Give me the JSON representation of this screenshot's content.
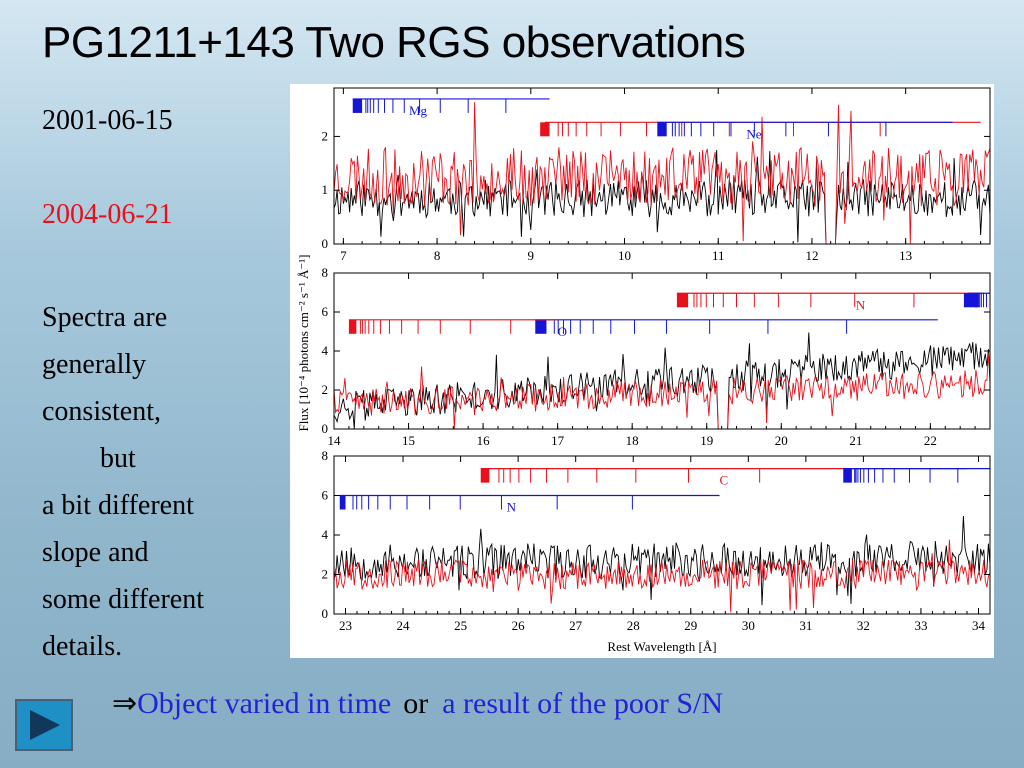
{
  "slide": {
    "title": "PG1211+143 Two RGS observations",
    "date_black": "2001-06-15",
    "date_red": "2004-06-21",
    "description": [
      "Spectra are",
      "generally",
      "consistent,",
      "but",
      "a bit different",
      "slope and",
      "some different",
      "details."
    ],
    "conclusion": {
      "arrow": "⇒",
      "part1": "Object varied in time",
      "or": "or",
      "part2": "a result of the poor S/N"
    },
    "nav_icon": "play-triangle-icon"
  },
  "colors": {
    "black_series": "#000000",
    "red_series": "#e8111b",
    "blue_lines": "#1515d8",
    "conclusion_blue": "#2323d6",
    "nav_button": "#1e90c6"
  },
  "chart_data": [
    {
      "type": "line",
      "xlim": [
        6.9,
        13.9
      ],
      "ylim": [
        0,
        2.9
      ],
      "xticks": [
        7,
        8,
        9,
        10,
        11,
        12,
        13
      ],
      "yticks": [
        0,
        1,
        2
      ],
      "ylabel": "",
      "xlabel": "",
      "series": [
        {
          "color": "black",
          "baseline": 0.85,
          "slope": 0.0,
          "noise": 0.35,
          "seed": 11,
          "dip": [
            12.15,
            12.25
          ]
        },
        {
          "color": "red",
          "baseline": 1.25,
          "slope": 0.0,
          "noise": 0.55,
          "seed": 23,
          "dip": [
            12.15,
            12.25
          ]
        }
      ],
      "line_sets": [
        {
          "label": "Mg",
          "color": "blue",
          "y_frac": 0.07,
          "range": [
            7.1,
            9.2
          ],
          "edge": [
            7.1,
            7.2
          ],
          "label_x": 7.7
        },
        {
          "label": "",
          "color": "red",
          "y_frac": 0.22,
          "range": [
            9.15,
            13.8
          ],
          "edge": [
            9.1,
            9.2
          ],
          "label_x": null
        },
        {
          "label": "Ne",
          "color": "blue",
          "y_frac": 0.22,
          "range": [
            10.35,
            13.5
          ],
          "edge": [
            10.35,
            10.45
          ],
          "label_x": 11.3
        }
      ]
    },
    {
      "type": "line",
      "xlim": [
        14,
        22.8
      ],
      "ylim": [
        0,
        8.0
      ],
      "xticks": [
        14,
        15,
        16,
        17,
        18,
        19,
        20,
        21,
        22
      ],
      "yticks": [
        0,
        2,
        4,
        6,
        8
      ],
      "ylabel": "Flux [10⁻⁴ photons cm⁻² s⁻¹ Å⁻¹]",
      "xlabel": "",
      "series": [
        {
          "color": "black",
          "baseline": 1.1,
          "slope": 0.3,
          "noise": 0.8,
          "seed": 37,
          "dip": [
            19.15,
            19.3
          ]
        },
        {
          "color": "red",
          "baseline": 1.3,
          "slope": 0.12,
          "noise": 0.7,
          "seed": 41,
          "dip": [
            19.15,
            19.3
          ]
        }
      ],
      "line_sets": [
        {
          "label": "N",
          "color": "red",
          "y_frac": 0.13,
          "range": [
            18.6,
            22.7
          ],
          "edge": [
            18.6,
            18.75
          ],
          "label_x": 21.0
        },
        {
          "label": "",
          "color": "blue",
          "y_frac": 0.13,
          "range": [
            22.5,
            22.8
          ],
          "edge": [
            22.45,
            22.6
          ],
          "label_x": null
        },
        {
          "label": "O",
          "color": "blue",
          "y_frac": 0.3,
          "range": [
            16.7,
            22.1
          ],
          "edge": [
            16.7,
            16.85
          ],
          "label_x": 17.0
        },
        {
          "label": "",
          "color": "red",
          "y_frac": 0.3,
          "range": [
            14.2,
            17.0
          ],
          "edge": [
            14.2,
            14.3
          ],
          "label_x": null
        }
      ]
    },
    {
      "type": "line",
      "xlim": [
        22.8,
        34.2
      ],
      "ylim": [
        0,
        8.0
      ],
      "xticks": [
        23,
        24,
        25,
        26,
        27,
        28,
        29,
        30,
        31,
        32,
        33,
        34
      ],
      "yticks": [
        0,
        2,
        4,
        6,
        8
      ],
      "ylabel": "",
      "xlabel": "Rest Wavelength [Å]",
      "series": [
        {
          "color": "black",
          "baseline": 2.6,
          "slope": 0.02,
          "noise": 0.9,
          "seed": 53,
          "dip": null
        },
        {
          "color": "red",
          "baseline": 2.0,
          "slope": 0.0,
          "noise": 0.75,
          "seed": 67,
          "dip": null
        }
      ],
      "line_sets": [
        {
          "label": "C",
          "color": "red",
          "y_frac": 0.08,
          "range": [
            25.35,
            33.8
          ],
          "edge": [
            25.35,
            25.5
          ],
          "label_x": 29.5
        },
        {
          "label": "",
          "color": "blue",
          "y_frac": 0.08,
          "range": [
            31.65,
            34.2
          ],
          "edge": [
            31.65,
            31.8
          ],
          "label_x": null
        },
        {
          "label": "N",
          "color": "blue",
          "y_frac": 0.25,
          "range": [
            22.9,
            29.5
          ],
          "edge": [
            22.9,
            23.0
          ],
          "label_x": 25.8
        }
      ]
    }
  ]
}
